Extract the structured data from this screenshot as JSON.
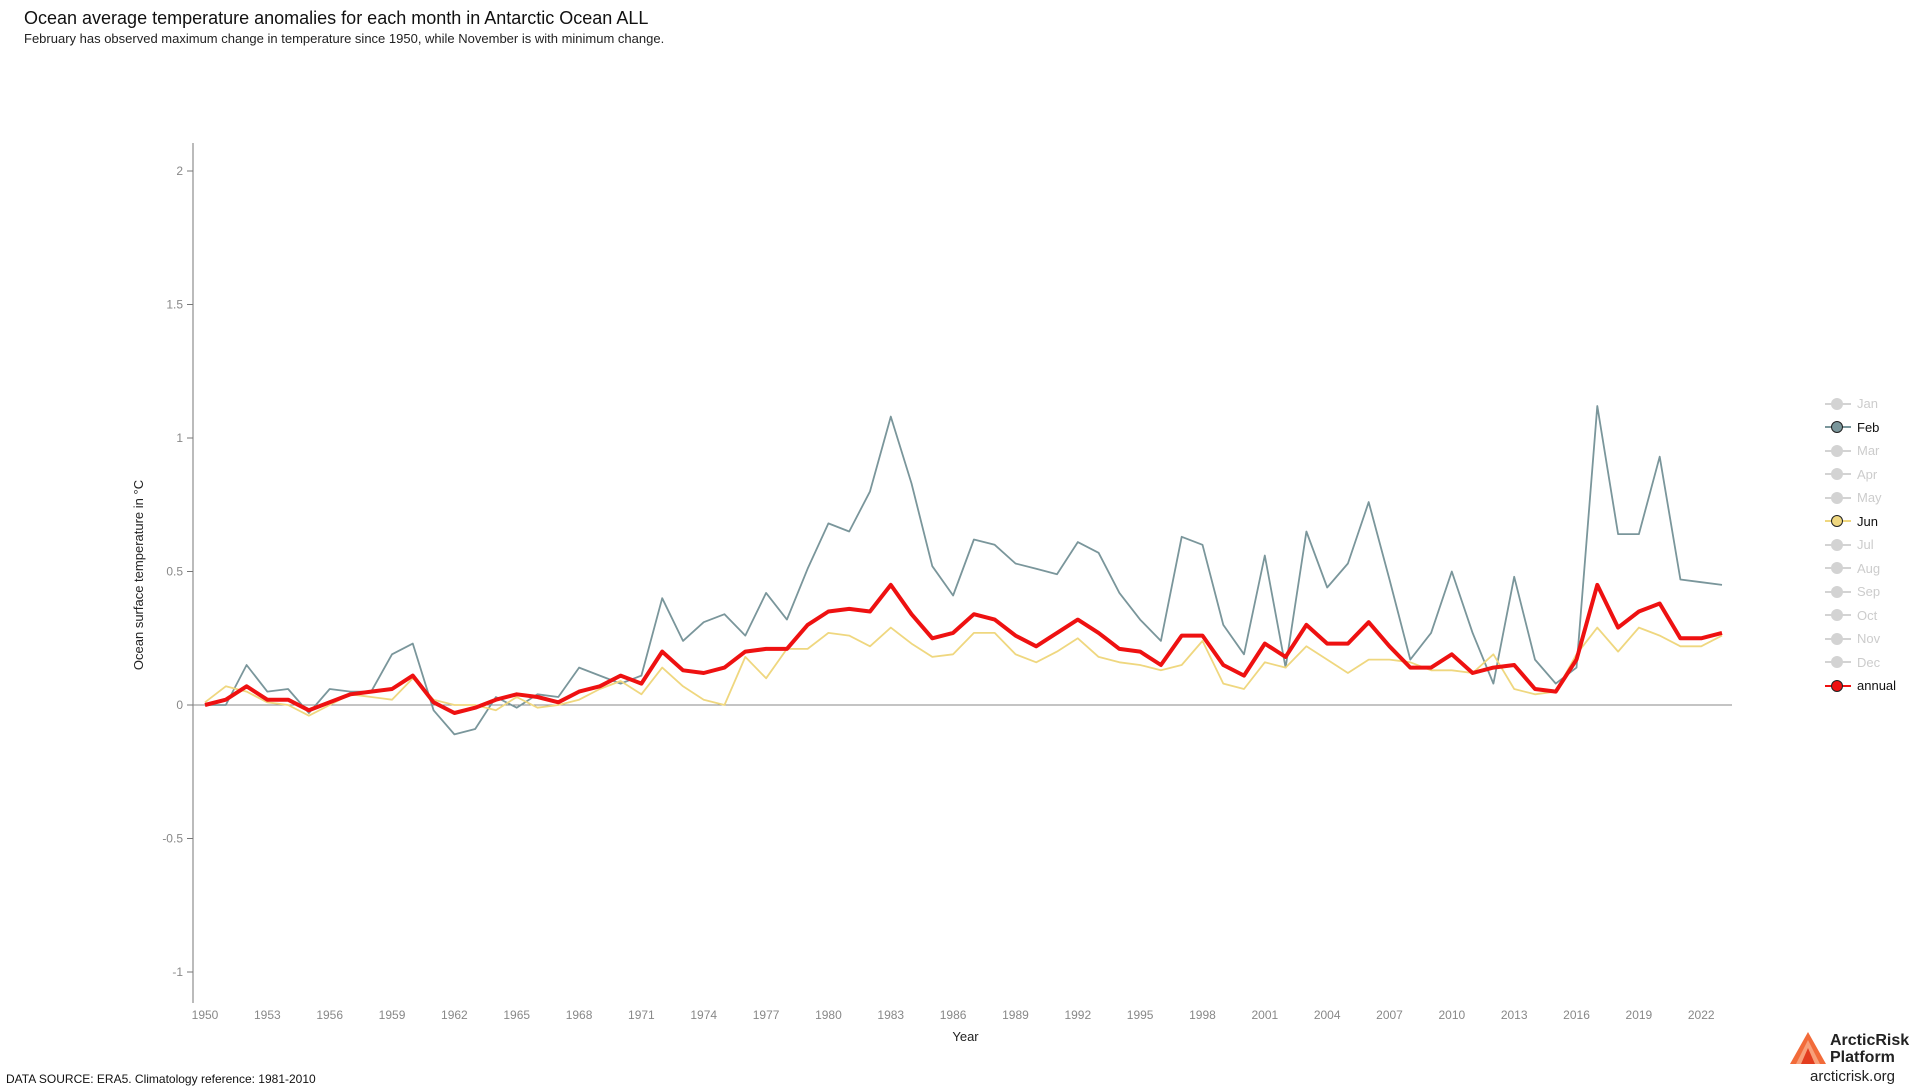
{
  "page": {
    "title": "Ocean average temperature anomalies for each month in Antarctic Ocean ALL",
    "subtitle": "February has observed maximum change in temperature since 1950, while November is with minimum change.",
    "source": "DATA SOURCE: ERA5. Climatology reference: 1981-2010"
  },
  "brand": {
    "name_line1": "ArcticRisk",
    "name_line2": "Platform",
    "url": "arcticrisk.org"
  },
  "legend": [
    {
      "label": "Jan",
      "active": false,
      "color": "#d3d3d3"
    },
    {
      "label": "Feb",
      "active": true,
      "color": "#7a969b"
    },
    {
      "label": "Mar",
      "active": false,
      "color": "#d3d3d3"
    },
    {
      "label": "Apr",
      "active": false,
      "color": "#d3d3d3"
    },
    {
      "label": "May",
      "active": false,
      "color": "#d3d3d3"
    },
    {
      "label": "Jun",
      "active": true,
      "color": "#efd77f"
    },
    {
      "label": "Jul",
      "active": false,
      "color": "#d3d3d3"
    },
    {
      "label": "Aug",
      "active": false,
      "color": "#d3d3d3"
    },
    {
      "label": "Sep",
      "active": false,
      "color": "#d3d3d3"
    },
    {
      "label": "Oct",
      "active": false,
      "color": "#d3d3d3"
    },
    {
      "label": "Nov",
      "active": false,
      "color": "#d3d3d3"
    },
    {
      "label": "Dec",
      "active": false,
      "color": "#d3d3d3"
    },
    {
      "label": "annual",
      "active": true,
      "color": "#ee1111"
    }
  ],
  "chart_data": {
    "type": "line",
    "xlabel": "Year",
    "ylabel": "Ocean surface temperature in °C",
    "xlim": [
      1950,
      2023
    ],
    "ylim": [
      -1.1,
      2.1
    ],
    "x_ticks": [
      "1950",
      "1953",
      "1956",
      "1959",
      "1962",
      "1965",
      "1968",
      "1971",
      "1974",
      "1977",
      "1980",
      "1983",
      "1986",
      "1989",
      "1992",
      "1995",
      "1998",
      "2001",
      "2004",
      "2007",
      "2010",
      "2013",
      "2016",
      "2019",
      "2022"
    ],
    "y_ticks": [
      "-1",
      "-0.5",
      "0",
      "0.5",
      "1",
      "1.5",
      "2"
    ],
    "x": [
      1950,
      1951,
      1952,
      1953,
      1954,
      1955,
      1956,
      1957,
      1958,
      1959,
      1960,
      1961,
      1962,
      1963,
      1964,
      1965,
      1966,
      1967,
      1968,
      1969,
      1970,
      1971,
      1972,
      1973,
      1974,
      1975,
      1976,
      1977,
      1978,
      1979,
      1980,
      1981,
      1982,
      1983,
      1984,
      1985,
      1986,
      1987,
      1988,
      1989,
      1990,
      1991,
      1992,
      1993,
      1994,
      1995,
      1996,
      1997,
      1998,
      1999,
      2000,
      2001,
      2002,
      2003,
      2004,
      2005,
      2006,
      2007,
      2008,
      2009,
      2010,
      2011,
      2012,
      2013,
      2014,
      2015,
      2016,
      2017,
      2018,
      2019,
      2020,
      2021,
      2022,
      2023
    ],
    "series": [
      {
        "name": "Feb",
        "color": "#7a969b",
        "width": 1.8,
        "values": [
          0.0,
          0.0,
          0.15,
          0.05,
          0.06,
          -0.03,
          0.06,
          0.05,
          0.05,
          0.19,
          0.23,
          -0.02,
          -0.11,
          -0.09,
          0.03,
          -0.01,
          0.04,
          0.03,
          0.14,
          0.11,
          0.08,
          0.11,
          0.4,
          0.24,
          0.31,
          0.34,
          0.26,
          0.42,
          0.32,
          0.51,
          0.68,
          0.65,
          0.8,
          1.08,
          0.83,
          0.52,
          0.41,
          0.62,
          0.6,
          0.53,
          0.51,
          0.49,
          0.61,
          0.57,
          0.42,
          0.32,
          0.24,
          0.63,
          0.6,
          0.3,
          0.19,
          0.56,
          0.14,
          0.65,
          0.44,
          0.53,
          0.76,
          0.47,
          0.17,
          0.27,
          0.5,
          0.27,
          0.08,
          0.48,
          0.17,
          0.08,
          0.14,
          1.12,
          0.64,
          0.64,
          0.93,
          0.47,
          0.46,
          0.45
        ]
      },
      {
        "name": "Jun",
        "color": "#efd77f",
        "width": 1.8,
        "values": [
          0.01,
          0.07,
          0.05,
          0.01,
          0.0,
          -0.04,
          0.0,
          0.04,
          0.03,
          0.02,
          0.1,
          0.02,
          0.0,
          0.0,
          -0.02,
          0.03,
          -0.01,
          0.0,
          0.02,
          0.06,
          0.09,
          0.04,
          0.14,
          0.07,
          0.02,
          0.0,
          0.18,
          0.1,
          0.21,
          0.21,
          0.27,
          0.26,
          0.22,
          0.29,
          0.23,
          0.18,
          0.19,
          0.27,
          0.27,
          0.19,
          0.16,
          0.2,
          0.25,
          0.18,
          0.16,
          0.15,
          0.13,
          0.15,
          0.24,
          0.08,
          0.06,
          0.16,
          0.14,
          0.22,
          0.17,
          0.12,
          0.17,
          0.17,
          0.16,
          0.13,
          0.13,
          0.12,
          0.19,
          0.06,
          0.04,
          0.05,
          0.19,
          0.29,
          0.2,
          0.29,
          0.26,
          0.22,
          0.22,
          0.26
        ]
      },
      {
        "name": "annual",
        "color": "#ee1111",
        "width": 4,
        "values": [
          0.0,
          0.02,
          0.07,
          0.02,
          0.02,
          -0.02,
          0.01,
          0.04,
          0.05,
          0.06,
          0.11,
          0.01,
          -0.03,
          -0.01,
          0.02,
          0.04,
          0.03,
          0.01,
          0.05,
          0.07,
          0.11,
          0.08,
          0.2,
          0.13,
          0.12,
          0.14,
          0.2,
          0.21,
          0.21,
          0.3,
          0.35,
          0.36,
          0.35,
          0.45,
          0.34,
          0.25,
          0.27,
          0.34,
          0.32,
          0.26,
          0.22,
          0.27,
          0.32,
          0.27,
          0.21,
          0.2,
          0.15,
          0.26,
          0.26,
          0.15,
          0.11,
          0.23,
          0.18,
          0.3,
          0.23,
          0.23,
          0.31,
          0.22,
          0.14,
          0.14,
          0.19,
          0.12,
          0.14,
          0.15,
          0.06,
          0.05,
          0.17,
          0.45,
          0.29,
          0.35,
          0.38,
          0.25,
          0.25,
          0.27
        ]
      }
    ]
  }
}
